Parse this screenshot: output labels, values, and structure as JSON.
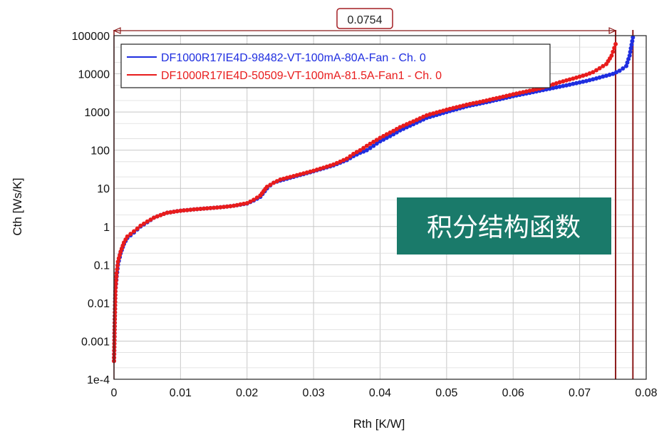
{
  "chart_data": {
    "type": "line",
    "title": "",
    "xlabel": "Rth  [K/W]",
    "ylabel": "Cth  [Ws/K]",
    "xlim": [
      0,
      0.08
    ],
    "yscale": "log",
    "ylim": [
      0.0001,
      100000
    ],
    "xticks": [
      "0",
      "0.01",
      "0.02",
      "0.03",
      "0.04",
      "0.05",
      "0.06",
      "0.07",
      "0.08"
    ],
    "yticks": [
      "1e-4",
      "0.001",
      "0.01",
      "0.1",
      "1",
      "10",
      "100",
      "1000",
      "10000",
      "100000"
    ],
    "grid": true,
    "legend_position": "top-left",
    "series": [
      {
        "name": "DF1000R17IE4D-98482-VT-100mA-80A-Fan - Ch. 0",
        "color": "#1f2ee0",
        "x": [
          0.0,
          0.0002,
          0.0004,
          0.0006,
          0.001,
          0.0015,
          0.002,
          0.003,
          0.004,
          0.005,
          0.006,
          0.007,
          0.008,
          0.01,
          0.012,
          0.014,
          0.016,
          0.018,
          0.02,
          0.021,
          0.022,
          0.023,
          0.0235,
          0.024,
          0.025,
          0.027,
          0.03,
          0.033,
          0.035,
          0.036,
          0.037,
          0.038,
          0.039,
          0.04,
          0.041,
          0.042,
          0.043,
          0.045,
          0.047,
          0.05,
          0.053,
          0.056,
          0.06,
          0.064,
          0.068,
          0.071,
          0.073,
          0.075,
          0.076,
          0.077,
          0.0775,
          0.078
        ],
        "values": [
          0.0003,
          0.02,
          0.05,
          0.1,
          0.2,
          0.35,
          0.5,
          0.7,
          1.0,
          1.3,
          1.7,
          2.0,
          2.3,
          2.6,
          2.8,
          3.0,
          3.2,
          3.5,
          4.0,
          4.8,
          6.0,
          10,
          12,
          14,
          16,
          20,
          28,
          40,
          55,
          70,
          85,
          100,
          130,
          170,
          210,
          260,
          330,
          480,
          700,
          1000,
          1400,
          1800,
          2600,
          3600,
          5000,
          6500,
          8000,
          10000,
          12000,
          16000,
          30000,
          90000
        ]
      },
      {
        "name": "DF1000R17IE4D-50509-VT-100mA-81.5A-Fan1 - Ch. 0",
        "color": "#e81c1c",
        "x": [
          0.0,
          0.0002,
          0.0004,
          0.0006,
          0.001,
          0.0015,
          0.002,
          0.003,
          0.004,
          0.005,
          0.006,
          0.007,
          0.008,
          0.01,
          0.012,
          0.014,
          0.016,
          0.018,
          0.02,
          0.021,
          0.022,
          0.0225,
          0.023,
          0.024,
          0.025,
          0.027,
          0.03,
          0.033,
          0.035,
          0.036,
          0.037,
          0.038,
          0.039,
          0.04,
          0.041,
          0.042,
          0.043,
          0.045,
          0.047,
          0.05,
          0.053,
          0.056,
          0.06,
          0.064,
          0.067,
          0.069,
          0.071,
          0.072,
          0.073,
          0.074,
          0.0748,
          0.0754
        ],
        "values": [
          0.0003,
          0.02,
          0.06,
          0.12,
          0.22,
          0.38,
          0.55,
          0.75,
          1.05,
          1.35,
          1.7,
          2.0,
          2.3,
          2.6,
          2.8,
          3.0,
          3.2,
          3.5,
          4.1,
          5.0,
          6.5,
          8.5,
          11,
          14,
          17,
          21,
          29,
          42,
          60,
          80,
          100,
          130,
          165,
          210,
          260,
          320,
          400,
          570,
          820,
          1150,
          1550,
          2000,
          2900,
          4100,
          6000,
          7500,
          9500,
          11000,
          14000,
          18000,
          30000,
          60000
        ]
      }
    ],
    "annotations": {
      "delta_label": "0.0754",
      "vertical_markers": [
        0.0754,
        0.078
      ],
      "badge_text": "积分结构函数"
    }
  },
  "colors": {
    "grid": "#c8c8c8",
    "axis": "#222222",
    "marker_line": "#8b1a1a",
    "badge_bg": "#1a7a6a",
    "label_box_border": "#a41f24"
  }
}
